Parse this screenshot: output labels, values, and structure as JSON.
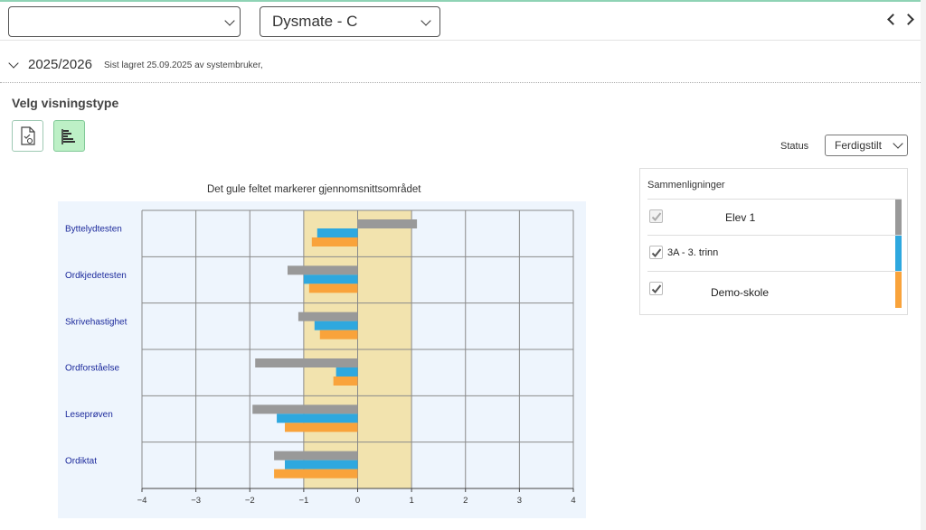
{
  "topbar": {
    "select1_value": "",
    "select2_value": "Dysmate - C"
  },
  "section": {
    "year": "2025/2026",
    "saved_text": "Sist lagret 25.09.2025 av systembruker,"
  },
  "view": {
    "heading": "Velg visningstype",
    "status_label": "Status",
    "status_value": "Ferdigstilt"
  },
  "comparisons": {
    "title": "Sammenligninger",
    "items": [
      {
        "label": "Elev 1",
        "checked": true,
        "color": "#999999"
      },
      {
        "label": "3A - 3. trinn",
        "checked": true,
        "color": "#2ea8df"
      },
      {
        "label": "Demo-skole",
        "checked": true,
        "color": "#f9a33b"
      }
    ]
  },
  "chart_data": {
    "type": "bar",
    "orientation": "horizontal",
    "title": "Det gule feltet markerer gjennomsnittsområdet",
    "categories": [
      "Byttelydtesten",
      "Ordkjedetesten",
      "Skrivehastighet",
      "Ordforståelse",
      "Leseprøven",
      "Ordiktat"
    ],
    "series": [
      {
        "name": "Elev 1",
        "color": "#999999",
        "values": [
          1.1,
          -1.3,
          -1.1,
          -1.9,
          -1.95,
          -1.55
        ]
      },
      {
        "name": "3A - 3. trinn",
        "color": "#2ea8df",
        "values": [
          -0.75,
          -1.0,
          -0.8,
          -0.4,
          -1.5,
          -1.35
        ]
      },
      {
        "name": "Demo-skole",
        "color": "#f9a33b",
        "values": [
          -0.85,
          -0.9,
          -0.7,
          -0.45,
          -1.35,
          -1.55
        ]
      }
    ],
    "xlim": [
      -4,
      4
    ],
    "xticks": [
      "−4",
      "−3",
      "−2",
      "−1",
      "0",
      "1",
      "2",
      "3",
      "4"
    ],
    "average_band": [
      -1,
      1
    ],
    "band_color": "#f2e3ae",
    "grid": true
  }
}
